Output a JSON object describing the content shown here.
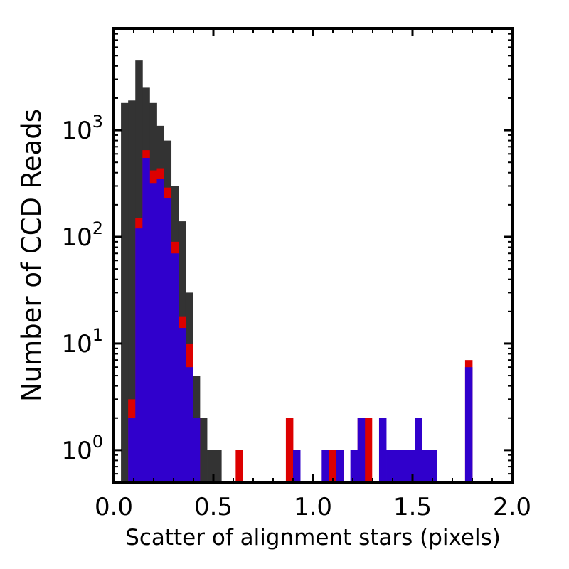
{
  "chart_data": {
    "type": "bar",
    "title": "",
    "xlabel": "Scatter of alignment stars (pixels)",
    "ylabel": "Number of CCD Reads",
    "xlim": [
      0.0,
      2.0
    ],
    "ylim": [
      0.5,
      9000
    ],
    "yscale": "log",
    "x_ticks": [
      {
        "value": 0.0,
        "label": "0.0"
      },
      {
        "value": 0.5,
        "label": "0.5"
      },
      {
        "value": 1.0,
        "label": "1.0"
      },
      {
        "value": 1.5,
        "label": "1.5"
      },
      {
        "value": 2.0,
        "label": "2.0"
      }
    ],
    "y_ticks": [
      {
        "value": 1,
        "base": "10",
        "exp": "0"
      },
      {
        "value": 10,
        "base": "10",
        "exp": "1"
      },
      {
        "value": 100,
        "base": "10",
        "exp": "2"
      },
      {
        "value": 1000,
        "base": "10",
        "exp": "3"
      }
    ],
    "bin_width": 0.036,
    "grid": false,
    "legend": "none",
    "series": [
      {
        "color": "#333333",
        "x": [
          0.036,
          0.072,
          0.108,
          0.144,
          0.18,
          0.216,
          0.252,
          0.288,
          0.324,
          0.36,
          0.396,
          0.432,
          0.468,
          0.504
        ],
        "values": [
          1800,
          1900,
          4500,
          2500,
          1800,
          1100,
          800,
          300,
          140,
          30,
          5,
          2,
          1,
          1
        ]
      },
      {
        "color": "#dd0000",
        "x": [
          0.072,
          0.108,
          0.144,
          0.18,
          0.216,
          0.252,
          0.288,
          0.324,
          0.36,
          0.396,
          0.612,
          0.864,
          1.08,
          1.116,
          1.224,
          1.26,
          1.764
        ],
        "values": [
          3,
          150,
          650,
          420,
          440,
          290,
          90,
          18,
          10,
          2,
          1,
          2,
          1,
          1,
          2,
          2,
          7
        ]
      },
      {
        "color": "#3000cc",
        "x": [
          0.072,
          0.108,
          0.144,
          0.18,
          0.216,
          0.252,
          0.288,
          0.324,
          0.36,
          0.396,
          0.9,
          1.044,
          1.116,
          1.188,
          1.224,
          1.332,
          1.368,
          1.404,
          1.44,
          1.476,
          1.512,
          1.548,
          1.584,
          1.764
        ],
        "values": [
          2,
          120,
          550,
          320,
          350,
          230,
          70,
          14,
          6,
          2,
          1,
          1,
          1,
          1,
          2,
          2,
          1,
          1,
          1,
          1,
          2,
          1,
          1,
          6
        ]
      }
    ]
  }
}
